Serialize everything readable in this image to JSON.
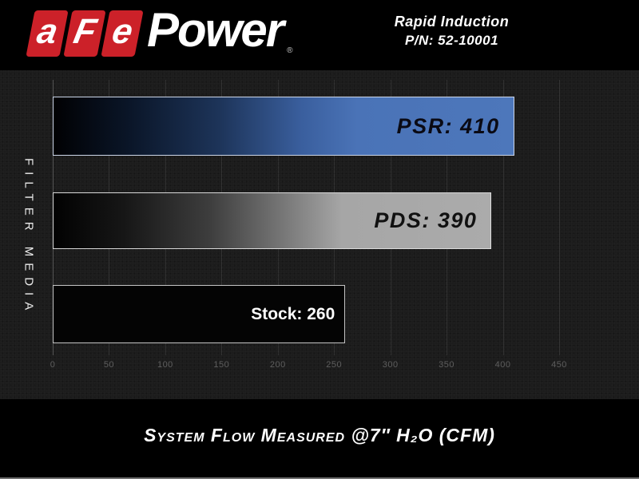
{
  "header": {
    "logo": {
      "letters": [
        "a",
        "F",
        "e"
      ],
      "word": "Power",
      "registered_mark": "®",
      "tile_color": "#cc2129",
      "text_color": "#ffffff"
    },
    "product": {
      "name": "Rapid Induction",
      "part_number": "P/N: 52-10001"
    }
  },
  "chart_data": {
    "type": "bar",
    "orientation": "horizontal",
    "title": "",
    "ylabel": "FILTER MEDIA",
    "xlabel": "System Flow Measured @7″ H₂O (CFM)",
    "xlim": [
      0,
      450
    ],
    "xticks": [
      0,
      50,
      100,
      150,
      200,
      250,
      300,
      350,
      400,
      450
    ],
    "grid": true,
    "legend": false,
    "categories": [
      "PSR",
      "PDS",
      "Stock"
    ],
    "series": [
      {
        "name": "System Flow (CFM)",
        "values": [
          410,
          390,
          260
        ]
      }
    ],
    "bars": [
      {
        "category": "PSR",
        "value": 410,
        "label": "PSR: 410",
        "fill": "blue-gradient",
        "end_color": "#4a73b7",
        "label_color": "#0a0a14",
        "label_style": "techno"
      },
      {
        "category": "PDS",
        "value": 390,
        "label": "PDS: 390",
        "fill": "gray-gradient",
        "end_color": "#a9a9a9",
        "label_color": "#111111",
        "label_style": "techno"
      },
      {
        "category": "Stock",
        "value": 260,
        "label": "Stock: 260",
        "fill": "solid-black",
        "end_color": "#040404",
        "label_color": "#ffffff",
        "label_style": "plain"
      }
    ],
    "axis_tick_color": "#5e5e5e",
    "background_color": "#1c1c1c"
  },
  "footer": {
    "caption": "System Flow Measured @7″ H₂O (CFM)"
  }
}
